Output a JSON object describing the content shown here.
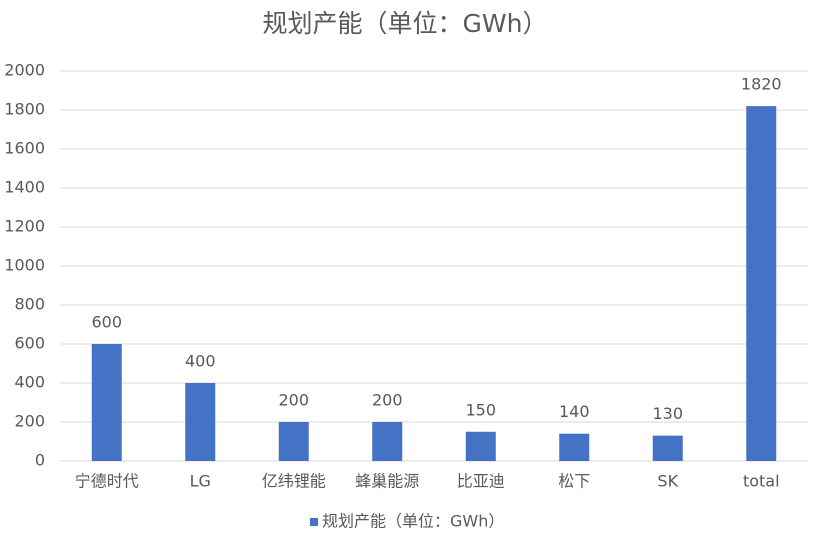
{
  "chart_data": {
    "type": "bar",
    "title": "规划产能（单位：GWh）",
    "categories": [
      "宁德时代",
      "LG",
      "亿纬锂能",
      "蜂巢能源",
      "比亚迪",
      "松下",
      "SK",
      "total"
    ],
    "series": [
      {
        "name": "规划产能（单位：GWh）",
        "color": "#4472c4",
        "values": [
          600,
          400,
          200,
          200,
          150,
          140,
          130,
          1820
        ]
      }
    ],
    "ylim": [
      0,
      2000
    ],
    "yticks": [
      0,
      200,
      400,
      600,
      800,
      1000,
      1200,
      1400,
      1600,
      1800,
      2000
    ],
    "grid": true,
    "legend": "bottom",
    "data_labels": true
  }
}
